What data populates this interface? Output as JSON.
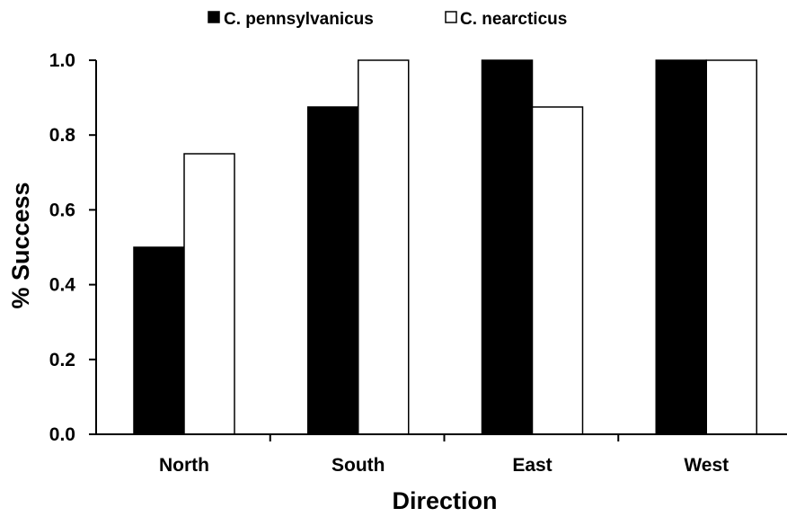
{
  "chart_data": {
    "type": "bar",
    "categories": [
      "North",
      "South",
      "East",
      "West"
    ],
    "series": [
      {
        "name": "C. pennsylvanicus",
        "values": [
          0.5,
          0.875,
          1.0,
          1.0
        ],
        "color": "#000000"
      },
      {
        "name": "C. nearcticus",
        "values": [
          0.75,
          1.0,
          0.875,
          1.0
        ],
        "color": "#ffffff"
      }
    ],
    "xlabel": "Direction",
    "ylabel": "% Success",
    "ylim": [
      0,
      1.0
    ],
    "yticks": [
      "0.0",
      "0.2",
      "0.4",
      "0.6",
      "0.8",
      "1.0"
    ],
    "grid": false,
    "legend_position": "top-center"
  }
}
